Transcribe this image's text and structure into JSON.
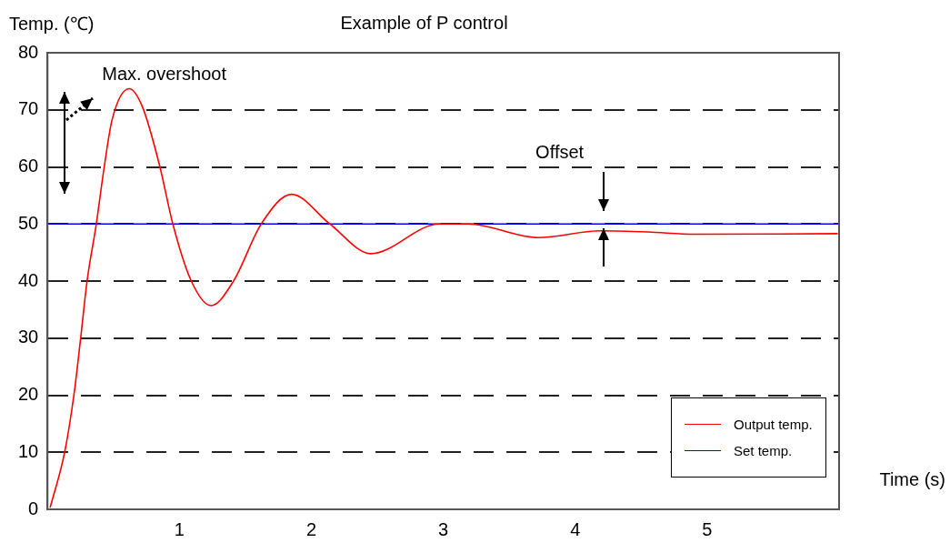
{
  "chart_data": {
    "type": "line",
    "title": "Example of P control",
    "xlabel": "Time (s)",
    "ylabel": "Temp. (℃)",
    "xlim": [
      0,
      6
    ],
    "xticks": [
      1,
      2,
      3,
      4,
      5
    ],
    "ylim": [
      0,
      80
    ],
    "yticks": [
      0,
      10,
      20,
      30,
      40,
      50,
      60,
      70,
      80
    ],
    "grid": "y",
    "legend": "bottom right",
    "marker": "none",
    "series": [
      {
        "name": "Output temp.",
        "color": "#ff0000",
        "x": [
          0.02,
          0.13,
          0.2,
          0.25,
          0.3,
          0.37,
          0.43,
          0.49,
          0.62,
          0.72,
          0.85,
          0.95,
          1.09,
          1.24,
          1.41,
          1.62,
          1.85,
          2.14,
          2.45,
          2.97,
          3.19,
          3.72,
          4.19,
          4.55,
          4.91,
          5.99
        ],
        "values": [
          0.3,
          10,
          20,
          29.7,
          40,
          50,
          60,
          68.3,
          73.7,
          70.5,
          60.2,
          50,
          40,
          35.7,
          40,
          50,
          55.2,
          50,
          44.8,
          50,
          50,
          47.6,
          48.8,
          48.6,
          48.2,
          48.3
        ]
      },
      {
        "name": "Set temp.",
        "color": "#0000ff",
        "x": [
          0,
          6
        ],
        "values": [
          50,
          50
        ]
      }
    ],
    "annotations": [
      {
        "text": "Max. overshoot",
        "x": 0.62,
        "y": 73.7
      },
      "Offset"
    ]
  }
}
